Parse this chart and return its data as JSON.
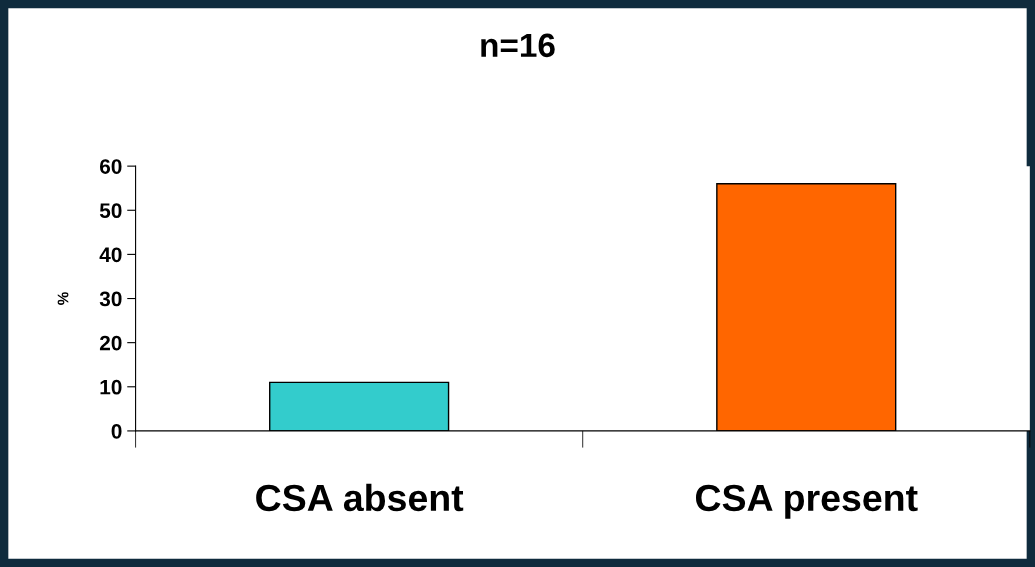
{
  "chart_data": {
    "type": "bar",
    "title": "n=16",
    "ylabel": "%",
    "categories": [
      "CSA absent",
      "CSA present"
    ],
    "values": [
      11,
      56
    ],
    "colors": [
      "#33cccc",
      "#ff6600"
    ],
    "ylim": [
      0,
      60
    ],
    "yticks": [
      0,
      10,
      20,
      30,
      40,
      50,
      60
    ],
    "grid": false,
    "legend": false
  }
}
